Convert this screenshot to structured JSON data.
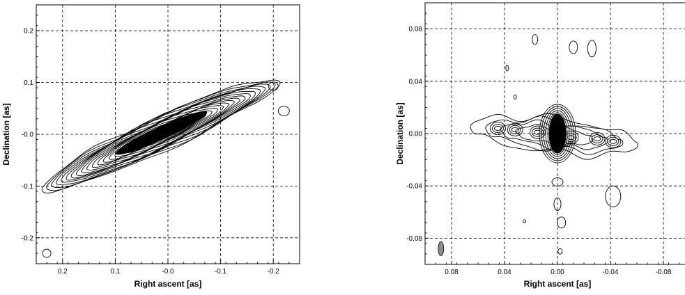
{
  "chart_data": [
    {
      "type": "contour",
      "xlabel": "Right ascent [as]",
      "ylabel": "Declination [as]",
      "xlim": [
        0.25,
        -0.25
      ],
      "ylim": [
        -0.25,
        0.25
      ],
      "x_ticks": [
        0.2,
        0.1,
        0.0,
        -0.1,
        -0.2
      ],
      "x_tick_labels": [
        "0.2",
        "0.1",
        "-0.0",
        "-0.1",
        "-0.2"
      ],
      "y_ticks": [
        0.2,
        0.1,
        0.0,
        -0.1,
        -0.2
      ],
      "y_tick_labels": [
        "0.2",
        "0.1",
        "-0.0",
        "-0.1",
        "-0.2"
      ],
      "grid": true,
      "jet_axis": {
        "from": [
          0.22,
          -0.1
        ],
        "to": [
          -0.21,
          0.1
        ]
      },
      "contour_levels": 20,
      "beam": {
        "center": [
          0.23,
          -0.23
        ]
      }
    },
    {
      "type": "contour",
      "xlabel": "Right ascent [as]",
      "ylabel": "Declination [as]",
      "xlim": [
        0.1,
        -0.1
      ],
      "ylim": [
        -0.1,
        0.1
      ],
      "x_ticks": [
        0.08,
        0.04,
        0.0,
        -0.04,
        -0.08
      ],
      "x_tick_labels": [
        "0.08",
        "0.04",
        "0.00",
        "-0.04",
        "-0.08"
      ],
      "y_ticks": [
        0.08,
        0.04,
        0.0,
        -0.04,
        -0.08
      ],
      "y_tick_labels": [
        "0.08",
        "0.04",
        "0.00",
        "-0.04",
        "-0.08"
      ],
      "grid": true,
      "jet_axis": {
        "from": [
          0.06,
          0.005
        ],
        "to": [
          -0.055,
          -0.008
        ]
      },
      "core": {
        "center": [
          0.0,
          0.0
        ]
      },
      "beam": {
        "center": [
          0.088,
          -0.088
        ]
      }
    }
  ]
}
